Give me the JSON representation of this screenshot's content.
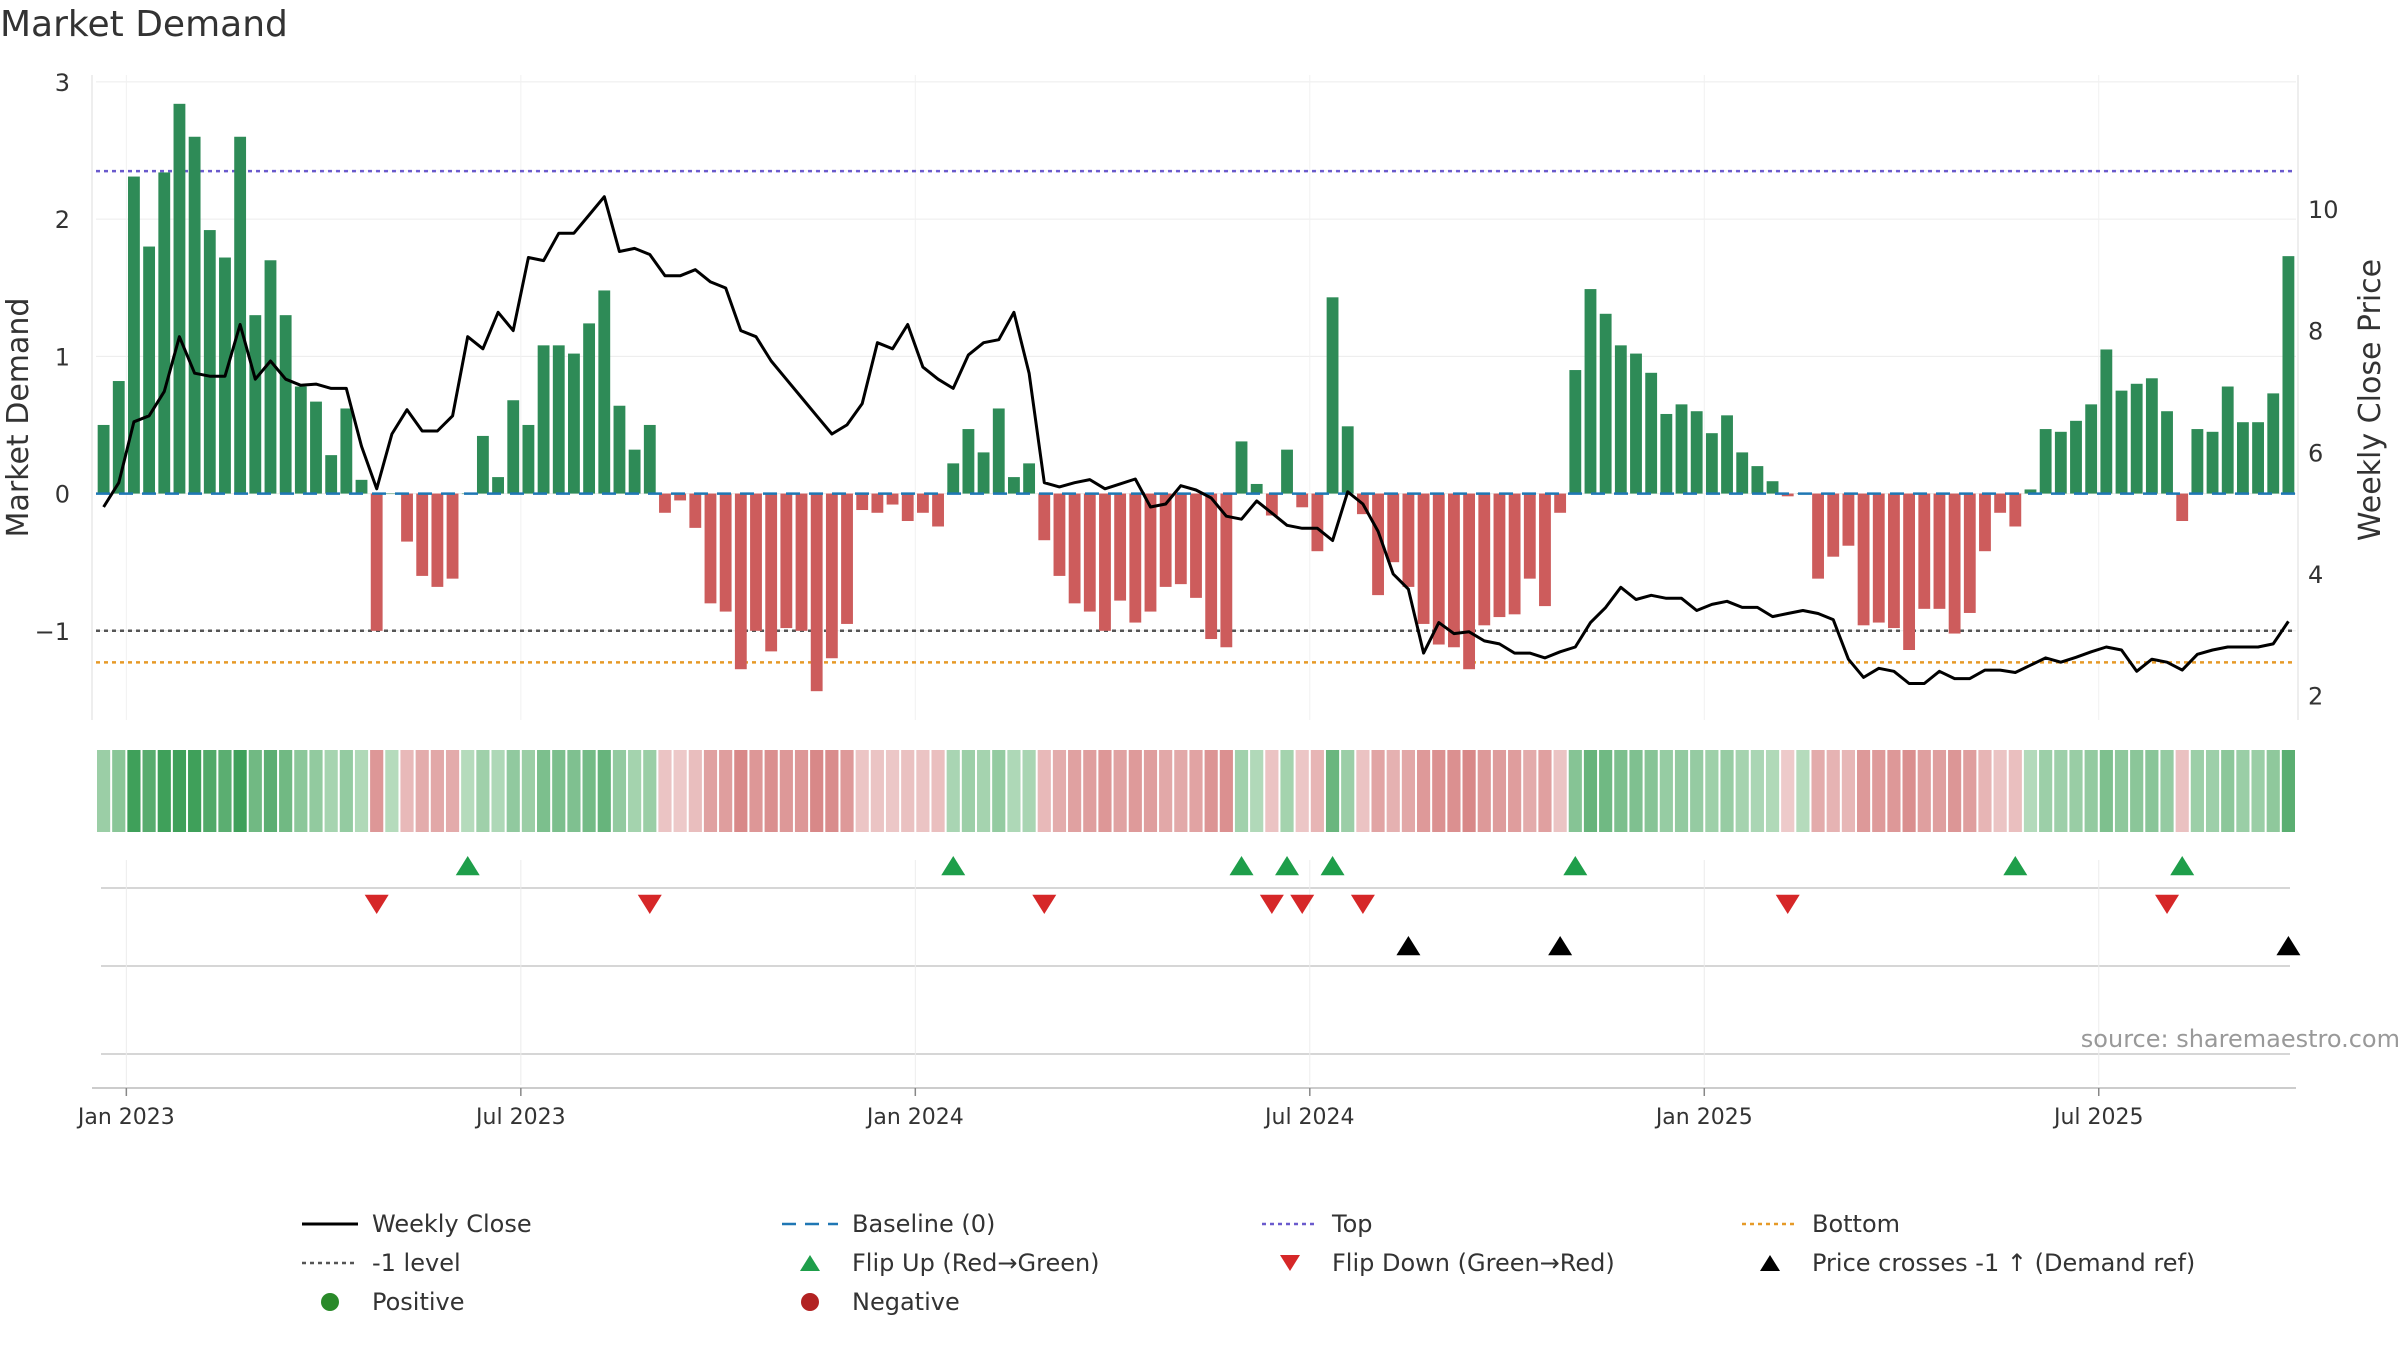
{
  "title": "Market Demand",
  "source": "source: sharemaestro.com",
  "colors": {
    "positive": "#2e8b57",
    "negative": "#cd5c5c",
    "price": "#000000",
    "baseline": "#1f77b4",
    "top": "#6a5acd",
    "minus1": "#555555",
    "bottom": "#e69a28",
    "flip_up": "#1e9e4a",
    "flip_down": "#d62728",
    "cross": "#000000",
    "pos_dot": "#2a8a2a",
    "neg_dot": "#b22222"
  },
  "chart_data": {
    "type": "bar",
    "title": "Market Demand",
    "ylabel": "Market Demand",
    "y2label": "Weekly Close Price",
    "ylim": [
      -1.65,
      3.05
    ],
    "y2lim": [
      1.6,
      12.2
    ],
    "yticks": [
      {
        "v": 3,
        "label": "3"
      },
      {
        "v": 2,
        "label": "2"
      },
      {
        "v": 1,
        "label": "1"
      },
      {
        "v": 0,
        "label": "0"
      },
      {
        "v": -1,
        "label": "−1"
      }
    ],
    "y2ticks": [
      {
        "v": 10,
        "label": "10"
      },
      {
        "v": 8,
        "label": "8"
      },
      {
        "v": 6,
        "label": "6"
      },
      {
        "v": 4,
        "label": "4"
      },
      {
        "v": 2,
        "label": "2"
      }
    ],
    "xticks": [
      {
        "i": 1.5,
        "label": "Jan 2023"
      },
      {
        "i": 27.5,
        "label": "Jul 2023"
      },
      {
        "i": 53.5,
        "label": "Jan 2024"
      },
      {
        "i": 79.5,
        "label": "Jul 2024"
      },
      {
        "i": 105.5,
        "label": "Jan 2025"
      },
      {
        "i": 131.5,
        "label": "Jul 2025"
      }
    ],
    "demand": [
      0.5,
      0.82,
      2.31,
      1.8,
      2.34,
      2.84,
      2.6,
      1.92,
      1.72,
      2.6,
      1.3,
      1.7,
      1.3,
      0.78,
      0.67,
      0.28,
      0.62,
      0.1,
      -1.0,
      0,
      -0.35,
      -0.6,
      -0.68,
      -0.62,
      0,
      0.42,
      0.12,
      0.68,
      0.5,
      1.08,
      1.08,
      1.02,
      1.24,
      1.48,
      0.64,
      0.32,
      0.5,
      -0.14,
      -0.05,
      -0.25,
      -0.8,
      -0.86,
      -1.28,
      -1.0,
      -1.15,
      -0.98,
      -1.0,
      -1.44,
      -1.2,
      -0.95,
      -0.12,
      -0.14,
      -0.08,
      -0.2,
      -0.14,
      -0.24,
      0.22,
      0.47,
      0.3,
      0.62,
      0.12,
      0.22,
      -0.34,
      -0.6,
      -0.8,
      -0.86,
      -1.0,
      -0.78,
      -0.94,
      -0.86,
      -0.68,
      -0.66,
      -0.76,
      -1.06,
      -1.12,
      0.38,
      0.07,
      -0.16,
      0.32,
      -0.1,
      -0.42,
      1.43,
      0.49,
      -0.15,
      -0.74,
      -0.5,
      -0.68,
      -0.95,
      -1.1,
      -1.12,
      -1.28,
      -0.96,
      -0.9,
      -0.88,
      -0.62,
      -0.82,
      -0.14,
      0.9,
      1.49,
      1.31,
      1.08,
      1.02,
      0.88,
      0.58,
      0.65,
      0.6,
      0.44,
      0.57,
      0.3,
      0.2,
      0.09,
      -0.02,
      0,
      -0.62,
      -0.46,
      -0.38,
      -0.96,
      -0.94,
      -0.98,
      -1.14,
      -0.84,
      -0.84,
      -1.02,
      -0.87,
      -0.42,
      -0.14,
      -0.24,
      0.03,
      0.47,
      0.45,
      0.53,
      0.65,
      1.05,
      0.75,
      0.8,
      0.84,
      0.6,
      -0.2,
      0.47,
      0.45,
      0.78,
      0.52,
      0.52,
      0.73,
      1.73
    ],
    "price": [
      5.1,
      5.5,
      6.5,
      6.6,
      7.0,
      7.9,
      7.3,
      7.25,
      7.25,
      8.1,
      7.2,
      7.5,
      7.2,
      7.1,
      7.12,
      7.05,
      7.05,
      6.1,
      5.4,
      6.3,
      6.7,
      6.35,
      6.35,
      6.6,
      7.9,
      7.7,
      8.3,
      8.0,
      9.2,
      9.15,
      9.6,
      9.6,
      9.9,
      10.2,
      9.3,
      9.35,
      9.25,
      8.9,
      8.9,
      9.0,
      8.8,
      8.7,
      8.0,
      7.9,
      7.5,
      7.2,
      6.9,
      6.6,
      6.3,
      6.45,
      6.8,
      7.8,
      7.7,
      8.1,
      7.4,
      7.2,
      7.05,
      7.6,
      7.8,
      7.85,
      8.3,
      7.3,
      5.5,
      5.43,
      5.5,
      5.55,
      5.4,
      5.48,
      5.56,
      5.1,
      5.15,
      5.45,
      5.38,
      5.25,
      4.95,
      4.9,
      5.2,
      5.0,
      4.8,
      4.75,
      4.75,
      4.55,
      5.35,
      5.15,
      4.7,
      4.0,
      3.75,
      2.7,
      3.2,
      3.02,
      3.05,
      2.9,
      2.85,
      2.7,
      2.7,
      2.62,
      2.72,
      2.8,
      3.2,
      3.45,
      3.78,
      3.58,
      3.65,
      3.6,
      3.6,
      3.4,
      3.5,
      3.55,
      3.45,
      3.45,
      3.3,
      3.35,
      3.4,
      3.35,
      3.25,
      2.6,
      2.3,
      2.45,
      2.4,
      2.2,
      2.2,
      2.4,
      2.28,
      2.28,
      2.42,
      2.42,
      2.38,
      2.5,
      2.62,
      2.55,
      2.63,
      2.72,
      2.8,
      2.75,
      2.4,
      2.6,
      2.55,
      2.42,
      2.68,
      2.75,
      2.8,
      2.8,
      2.8,
      2.85,
      3.22
    ],
    "flip_up": [
      24,
      56,
      75,
      78,
      81,
      97,
      126,
      137
    ],
    "flip_down": [
      18,
      36,
      62,
      77,
      79,
      83,
      111,
      136
    ],
    "price_cross": [
      86,
      96,
      144
    ],
    "levels": {
      "top": 2.35,
      "minus1": -1.0,
      "bottom": -1.23,
      "baseline": 0
    }
  },
  "legend": [
    {
      "label": "Weekly Close",
      "symbol": "line-solid",
      "color": "#000000"
    },
    {
      "label": "Baseline (0)",
      "symbol": "line-dash",
      "color": "#1f77b4"
    },
    {
      "label": "Top",
      "symbol": "line-dot",
      "color": "#6a5acd"
    },
    {
      "label": "Bottom",
      "symbol": "line-dot",
      "color": "#e69a28"
    },
    {
      "label": "-1 level",
      "symbol": "line-dot",
      "color": "#555555"
    },
    {
      "label": "Flip Up (Red→Green)",
      "symbol": "tri-up",
      "color": "#1e9e4a"
    },
    {
      "label": "Flip Down (Green→Red)",
      "symbol": "tri-down",
      "color": "#d62728"
    },
    {
      "label": "Price crosses -1 ↑ (Demand ref)",
      "symbol": "tri-up",
      "color": "#000000"
    },
    {
      "label": "Positive",
      "symbol": "dot",
      "color": "#2a8a2a"
    },
    {
      "label": "Negative",
      "symbol": "dot",
      "color": "#b22222"
    }
  ]
}
